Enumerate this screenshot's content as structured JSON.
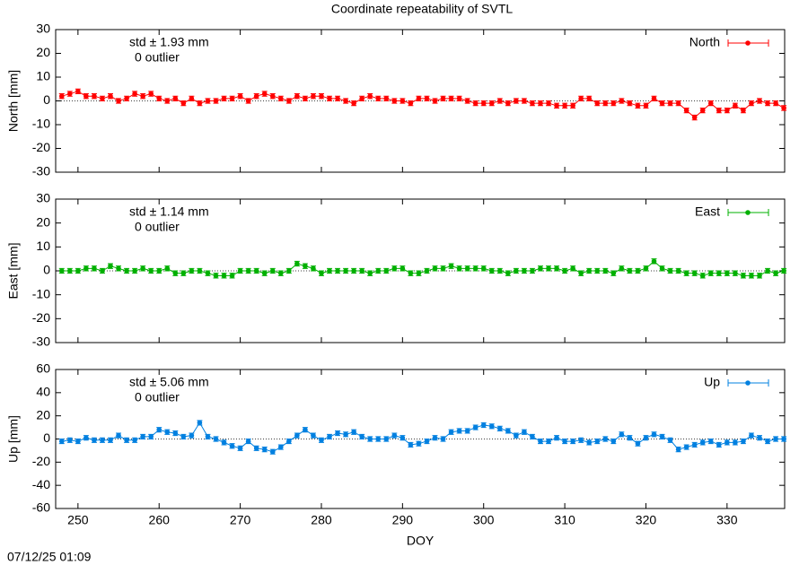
{
  "title": "Coordinate repeatability of SVTL",
  "timestamp": "07/12/25 01:09",
  "chart_data": [
    {
      "type": "line",
      "ylabel": "North [mm]",
      "annotations": [
        "std ± 1.93 mm",
        "0 outlier"
      ],
      "xlim": [
        247.25,
        337.1
      ],
      "ylim": [
        -30,
        30
      ],
      "yticks": [
        -30,
        -20,
        -10,
        0,
        10,
        20,
        30
      ],
      "legend": "top-right",
      "x": [
        248,
        249,
        250,
        251,
        252,
        253,
        254,
        255,
        256,
        257,
        258,
        259,
        260,
        261,
        262,
        263,
        264,
        265,
        266,
        267,
        268,
        269,
        270,
        271,
        272,
        273,
        274,
        275,
        276,
        277,
        278,
        279,
        280,
        281,
        282,
        283,
        284,
        285,
        286,
        287,
        288,
        289,
        290,
        291,
        292,
        293,
        294,
        295,
        296,
        297,
        298,
        299,
        300,
        301,
        302,
        303,
        304,
        305,
        306,
        307,
        308,
        309,
        310,
        311,
        312,
        313,
        314,
        315,
        316,
        317,
        318,
        319,
        320,
        321,
        322,
        323,
        324,
        325,
        326,
        327,
        328,
        329,
        330,
        331,
        332,
        333,
        334,
        335,
        336,
        337
      ],
      "series": [
        {
          "name": "North",
          "color": "#ff0000",
          "values": [
            2,
            3,
            4,
            2,
            2,
            1,
            2,
            0,
            1,
            3,
            2,
            3,
            1,
            0,
            1,
            -1,
            1,
            -1,
            0,
            0,
            1,
            1,
            2,
            0,
            2,
            3,
            2,
            1,
            0,
            2,
            1,
            2,
            2,
            1,
            1,
            0,
            -1,
            1,
            2,
            1,
            1,
            0,
            0,
            -1,
            1,
            1,
            0,
            1,
            1,
            1,
            0,
            -1,
            -1,
            -1,
            0,
            -1,
            0,
            0,
            -1,
            -1,
            -1,
            -2,
            -2,
            -2,
            1,
            1,
            -1,
            -1,
            -1,
            0,
            -1,
            -2,
            -2,
            1,
            -1,
            -1,
            -1,
            -4,
            -7,
            -4,
            -1,
            -4,
            -4,
            -2,
            -4,
            -1,
            0,
            -1,
            -1,
            -3
          ],
          "errors": [
            1,
            1,
            1,
            1,
            1,
            1,
            1,
            1,
            1,
            1,
            1,
            1,
            1,
            1,
            1,
            1,
            1,
            1,
            1,
            1,
            1,
            1,
            1,
            1,
            1,
            1,
            1,
            1,
            1,
            1,
            1,
            1,
            1,
            1,
            1,
            1,
            1,
            1,
            1,
            1,
            1,
            1,
            1,
            1,
            1,
            1,
            1,
            1,
            1,
            1,
            1,
            1,
            1,
            1,
            1,
            1,
            1,
            1,
            1,
            1,
            1,
            1,
            1,
            1,
            1,
            1,
            1,
            1,
            1,
            1,
            1,
            1,
            1,
            1,
            1,
            1,
            1,
            1,
            1,
            1,
            1,
            1,
            1,
            1,
            1,
            1,
            1,
            1,
            1,
            1
          ]
        }
      ]
    },
    {
      "type": "line",
      "ylabel": "East [mm]",
      "annotations": [
        "std ± 1.14 mm",
        "0 outlier"
      ],
      "xlim": [
        247.25,
        337.1
      ],
      "ylim": [
        -30,
        30
      ],
      "yticks": [
        -30,
        -20,
        -10,
        0,
        10,
        20,
        30
      ],
      "legend": "top-right",
      "x": [
        248,
        249,
        250,
        251,
        252,
        253,
        254,
        255,
        256,
        257,
        258,
        259,
        260,
        261,
        262,
        263,
        264,
        265,
        266,
        267,
        268,
        269,
        270,
        271,
        272,
        273,
        274,
        275,
        276,
        277,
        278,
        279,
        280,
        281,
        282,
        283,
        284,
        285,
        286,
        287,
        288,
        289,
        290,
        291,
        292,
        293,
        294,
        295,
        296,
        297,
        298,
        299,
        300,
        301,
        302,
        303,
        304,
        305,
        306,
        307,
        308,
        309,
        310,
        311,
        312,
        313,
        314,
        315,
        316,
        317,
        318,
        319,
        320,
        321,
        322,
        323,
        324,
        325,
        326,
        327,
        328,
        329,
        330,
        331,
        332,
        333,
        334,
        335,
        336,
        337
      ],
      "series": [
        {
          "name": "East",
          "color": "#00b000",
          "values": [
            0,
            0,
            0,
            1,
            1,
            0,
            2,
            1,
            0,
            0,
            1,
            0,
            0,
            1,
            -1,
            -1,
            0,
            0,
            -1,
            -2,
            -2,
            -2,
            0,
            0,
            0,
            -1,
            0,
            -1,
            0,
            3,
            2,
            1,
            -1,
            0,
            0,
            0,
            0,
            0,
            -1,
            0,
            0,
            1,
            1,
            -1,
            -1,
            0,
            1,
            1,
            2,
            1,
            1,
            1,
            1,
            0,
            0,
            -1,
            0,
            0,
            0,
            1,
            1,
            1,
            0,
            1,
            -1,
            0,
            0,
            0,
            -1,
            1,
            0,
            0,
            1,
            4,
            1,
            0,
            0,
            -1,
            -1,
            -2,
            -1,
            -1,
            -1,
            -1,
            -2,
            -2,
            -2,
            0,
            -1,
            0
          ],
          "errors": [
            1,
            1,
            1,
            1,
            1,
            1,
            1,
            1,
            1,
            1,
            1,
            1,
            1,
            1,
            1,
            1,
            1,
            1,
            1,
            1,
            1,
            1,
            1,
            1,
            1,
            1,
            1,
            1,
            1,
            1,
            1,
            1,
            1,
            1,
            1,
            1,
            1,
            1,
            1,
            1,
            1,
            1,
            1,
            1,
            1,
            1,
            1,
            1,
            1,
            1,
            1,
            1,
            1,
            1,
            1,
            1,
            1,
            1,
            1,
            1,
            1,
            1,
            1,
            1,
            1,
            1,
            1,
            1,
            1,
            1,
            1,
            1,
            1,
            1,
            1,
            1,
            1,
            1,
            1,
            1,
            1,
            1,
            1,
            1,
            1,
            1,
            1,
            1,
            1,
            1
          ]
        }
      ]
    },
    {
      "type": "line",
      "ylabel": "Up [mm]",
      "xlabel": "DOY",
      "annotations": [
        "std ± 5.06 mm",
        "0 outlier"
      ],
      "xlim": [
        247.25,
        337.1
      ],
      "xticks": [
        250,
        260,
        270,
        280,
        290,
        300,
        310,
        320,
        330
      ],
      "ylim": [
        -60,
        60
      ],
      "yticks": [
        -60,
        -40,
        -20,
        0,
        20,
        40,
        60
      ],
      "legend": "top-right",
      "x": [
        248,
        249,
        250,
        251,
        252,
        253,
        254,
        255,
        256,
        257,
        258,
        259,
        260,
        261,
        262,
        263,
        264,
        265,
        266,
        267,
        268,
        269,
        270,
        271,
        272,
        273,
        274,
        275,
        276,
        277,
        278,
        279,
        280,
        281,
        282,
        283,
        284,
        285,
        286,
        287,
        288,
        289,
        290,
        291,
        292,
        293,
        294,
        295,
        296,
        297,
        298,
        299,
        300,
        301,
        302,
        303,
        304,
        305,
        306,
        307,
        308,
        309,
        310,
        311,
        312,
        313,
        314,
        315,
        316,
        317,
        318,
        319,
        320,
        321,
        322,
        323,
        324,
        325,
        326,
        327,
        328,
        329,
        330,
        331,
        332,
        333,
        334,
        335,
        336,
        337
      ],
      "series": [
        {
          "name": "Up",
          "color": "#0080e0",
          "values": [
            -2,
            -1,
            -2,
            1,
            -1,
            -1,
            -1,
            3,
            -1,
            -1,
            2,
            2,
            8,
            6,
            5,
            2,
            3,
            14,
            2,
            0,
            -3,
            -6,
            -8,
            -2,
            -8,
            -9,
            -11,
            -7,
            -2,
            3,
            8,
            3,
            -1,
            2,
            5,
            4,
            6,
            2,
            0,
            0,
            0,
            3,
            1,
            -5,
            -4,
            -2,
            1,
            0,
            6,
            7,
            7,
            10,
            12,
            11,
            9,
            7,
            3,
            6,
            2,
            -2,
            -2,
            1,
            -2,
            -2,
            -1,
            -3,
            -2,
            0,
            -2,
            4,
            1,
            -4,
            1,
            4,
            2,
            -1,
            -9,
            -7,
            -5,
            -3,
            -2,
            -5,
            -3,
            -3,
            -2,
            3,
            1,
            -2,
            0,
            0
          ],
          "errors": [
            2,
            2,
            2,
            2,
            2,
            2,
            2,
            2,
            2,
            2,
            2,
            2,
            2,
            2,
            2,
            2,
            2,
            2,
            2,
            2,
            2,
            2,
            2,
            2,
            2,
            2,
            2,
            2,
            2,
            2,
            2,
            2,
            2,
            2,
            2,
            2,
            2,
            2,
            2,
            2,
            2,
            2,
            2,
            2,
            2,
            2,
            2,
            2,
            2,
            2,
            2,
            2,
            2,
            2,
            2,
            2,
            2,
            2,
            2,
            2,
            2,
            2,
            2,
            2,
            2,
            2,
            2,
            2,
            2,
            2,
            2,
            2,
            2,
            2,
            2,
            2,
            2,
            2,
            2,
            2,
            2,
            2,
            2,
            2,
            2,
            2,
            2,
            2,
            2,
            2
          ]
        }
      ]
    }
  ]
}
